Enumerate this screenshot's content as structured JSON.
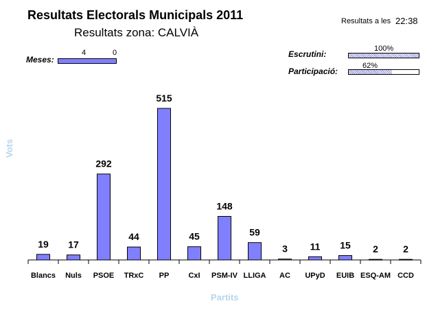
{
  "header": {
    "title": "Resultats Electorals Municipals 2011",
    "subtitle": "Resultats zona: CALVIÀ",
    "time_label": "Resultats a les",
    "time_value": "22:38"
  },
  "meses": {
    "label": "Meses:",
    "value_a": "4",
    "value_b": "0"
  },
  "progress": {
    "escrutini": {
      "label": "Escrutini:",
      "value": "100%",
      "fraction": 1.0
    },
    "participacio": {
      "label": "Participació:",
      "value": "62%",
      "fraction": 0.62
    }
  },
  "colors": {
    "bar": "#8080ff",
    "axis_title": "#b8d4ec"
  },
  "chart_data": {
    "type": "bar",
    "xlabel": "Partits",
    "ylabel": "Vots",
    "categories": [
      "Blancs",
      "Nuls",
      "PSOE",
      "TRxC",
      "PP",
      "CxI",
      "PSM-IV",
      "LLIGA",
      "AC",
      "UPyD",
      "EUIB",
      "ESQ-AM",
      "CCD"
    ],
    "values": [
      19,
      17,
      292,
      44,
      515,
      45,
      148,
      59,
      3,
      11,
      15,
      2,
      2
    ],
    "ylim": [
      0,
      515
    ],
    "grid": false
  }
}
